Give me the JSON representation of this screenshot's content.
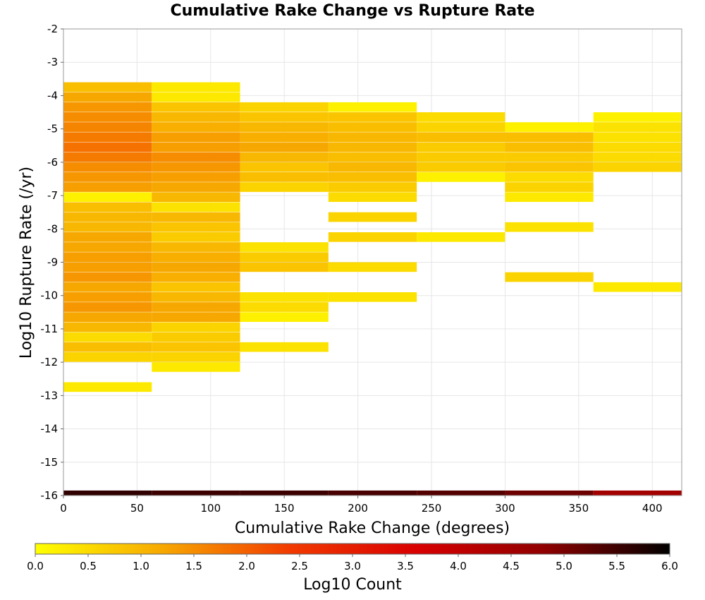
{
  "chart_data": {
    "type": "heatmap",
    "title": "Cumulative Rake Change vs Rupture Rate",
    "xlabel": "Cumulative Rake Change (degrees)",
    "ylabel": "Log10 Rupture Rate (/yr)",
    "xlim": [
      0,
      420
    ],
    "ylim": [
      -16,
      -2
    ],
    "x_ticks": [
      "0",
      "50",
      "100",
      "150",
      "200",
      "250",
      "300",
      "350",
      "400"
    ],
    "x_tick_values": [
      0,
      50,
      100,
      150,
      200,
      250,
      300,
      350,
      400
    ],
    "y_ticks": [
      "-2",
      "-3",
      "-4",
      "-5",
      "-6",
      "-7",
      "-8",
      "-9",
      "-10",
      "-11",
      "-12",
      "-13",
      "-14",
      "-15",
      "-16"
    ],
    "y_tick_values": [
      -2,
      -3,
      -4,
      -5,
      -6,
      -7,
      -8,
      -9,
      -10,
      -11,
      -12,
      -13,
      -14,
      -15,
      -16
    ],
    "x_bin_width": 60,
    "y_bin_height": 0.29,
    "grid": true,
    "colorbar": {
      "label": "Log10 Count",
      "min": 0,
      "max": 6,
      "ticks": [
        "0.0",
        "0.5",
        "1.0",
        "1.5",
        "2.0",
        "2.5",
        "3.0",
        "3.5",
        "4.0",
        "4.5",
        "5.0",
        "5.5",
        "6.0"
      ],
      "tick_values": [
        0,
        0.5,
        1,
        1.5,
        2,
        2.5,
        3,
        3.5,
        4,
        4.5,
        5,
        5.5,
        6
      ],
      "stops": [
        "#ffff00",
        "#f7a800",
        "#f23b00",
        "#d90000",
        "#910000",
        "#000000"
      ]
    },
    "columns": [
      {
        "x": 0,
        "cells": [
          [
            -3.6,
            0.9
          ],
          [
            -3.9,
            1.2
          ],
          [
            -4.2,
            1.4
          ],
          [
            -4.5,
            1.5
          ],
          [
            -4.8,
            1.6
          ],
          [
            -5.1,
            1.7
          ],
          [
            -5.4,
            1.8
          ],
          [
            -5.7,
            1.7
          ],
          [
            -6.0,
            1.5
          ],
          [
            -6.3,
            1.4
          ],
          [
            -6.6,
            1.3
          ],
          [
            -6.9,
            0.2
          ],
          [
            -7.2,
            0.9
          ],
          [
            -7.5,
            1.0
          ],
          [
            -7.8,
            1.0
          ],
          [
            -8.1,
            1.2
          ],
          [
            -8.4,
            1.2
          ],
          [
            -8.7,
            1.3
          ],
          [
            -9.0,
            1.3
          ],
          [
            -9.3,
            1.4
          ],
          [
            -9.6,
            1.2
          ],
          [
            -9.9,
            1.3
          ],
          [
            -10.2,
            1.4
          ],
          [
            -10.5,
            1.2
          ],
          [
            -10.8,
            1.0
          ],
          [
            -11.1,
            0.5
          ],
          [
            -11.4,
            0.9
          ],
          [
            -11.7,
            0.6
          ],
          [
            -12.6,
            0.3
          ]
        ]
      },
      {
        "x": 60,
        "cells": [
          [
            -3.6,
            0.3
          ],
          [
            -3.9,
            0.3
          ],
          [
            -4.2,
            0.8
          ],
          [
            -4.5,
            1.0
          ],
          [
            -4.8,
            1.1
          ],
          [
            -5.1,
            1.3
          ],
          [
            -5.4,
            1.3
          ],
          [
            -5.7,
            1.5
          ],
          [
            -6.0,
            1.4
          ],
          [
            -6.3,
            1.3
          ],
          [
            -6.6,
            1.2
          ],
          [
            -6.9,
            1.0
          ],
          [
            -7.2,
            0.4
          ],
          [
            -7.5,
            1.0
          ],
          [
            -7.8,
            0.8
          ],
          [
            -8.1,
            0.7
          ],
          [
            -8.4,
            1.0
          ],
          [
            -8.7,
            1.1
          ],
          [
            -9.0,
            1.2
          ],
          [
            -9.3,
            1.1
          ],
          [
            -9.6,
            0.8
          ],
          [
            -9.9,
            1.0
          ],
          [
            -10.2,
            1.2
          ],
          [
            -10.5,
            1.2
          ],
          [
            -10.8,
            0.6
          ],
          [
            -11.1,
            0.7
          ],
          [
            -11.4,
            0.8
          ],
          [
            -11.7,
            0.6
          ],
          [
            -12.0,
            0.3
          ]
        ]
      },
      {
        "x": 120,
        "cells": [
          [
            -4.2,
            0.6
          ],
          [
            -4.5,
            0.8
          ],
          [
            -4.8,
            1.0
          ],
          [
            -5.1,
            1.1
          ],
          [
            -5.4,
            1.2
          ],
          [
            -5.7,
            1.0
          ],
          [
            -6.0,
            0.8
          ],
          [
            -6.3,
            0.9
          ],
          [
            -6.6,
            0.6
          ],
          [
            -8.4,
            0.4
          ],
          [
            -8.7,
            0.7
          ],
          [
            -9.0,
            0.8
          ],
          [
            -9.9,
            0.4
          ],
          [
            -10.2,
            0.5
          ],
          [
            -10.5,
            0.2
          ],
          [
            -11.4,
            0.4
          ]
        ]
      },
      {
        "x": 180,
        "cells": [
          [
            -4.2,
            0.2
          ],
          [
            -4.5,
            0.8
          ],
          [
            -4.8,
            0.9
          ],
          [
            -5.1,
            1.0
          ],
          [
            -5.4,
            1.0
          ],
          [
            -5.7,
            0.9
          ],
          [
            -6.0,
            1.0
          ],
          [
            -6.3,
            0.9
          ],
          [
            -6.6,
            0.7
          ],
          [
            -6.9,
            0.5
          ],
          [
            -7.5,
            0.6
          ],
          [
            -8.1,
            0.6
          ],
          [
            -9.0,
            0.5
          ],
          [
            -9.9,
            0.4
          ]
        ]
      },
      {
        "x": 240,
        "cells": [
          [
            -4.5,
            0.5
          ],
          [
            -4.8,
            0.6
          ],
          [
            -5.1,
            0.9
          ],
          [
            -5.4,
            0.7
          ],
          [
            -5.7,
            0.7
          ],
          [
            -6.0,
            0.7
          ],
          [
            -6.3,
            0.2
          ],
          [
            -8.1,
            0.3
          ]
        ]
      },
      {
        "x": 300,
        "cells": [
          [
            -4.8,
            0.2
          ],
          [
            -5.1,
            0.9
          ],
          [
            -5.4,
            0.9
          ],
          [
            -5.7,
            0.7
          ],
          [
            -6.0,
            0.8
          ],
          [
            -6.3,
            0.5
          ],
          [
            -6.6,
            0.6
          ],
          [
            -6.9,
            0.3
          ],
          [
            -7.8,
            0.4
          ],
          [
            -9.3,
            0.6
          ]
        ]
      },
      {
        "x": 360,
        "cells": [
          [
            -4.5,
            0.2
          ],
          [
            -4.8,
            0.4
          ],
          [
            -5.1,
            0.4
          ],
          [
            -5.4,
            0.5
          ],
          [
            -5.7,
            0.5
          ],
          [
            -6.0,
            0.6
          ],
          [
            -9.6,
            0.3
          ]
        ]
      }
    ],
    "bottom_row": {
      "y": -16.0,
      "values": [
        5.6,
        5.5,
        5.5,
        5.4,
        5.3,
        5.1,
        4.5
      ]
    }
  }
}
